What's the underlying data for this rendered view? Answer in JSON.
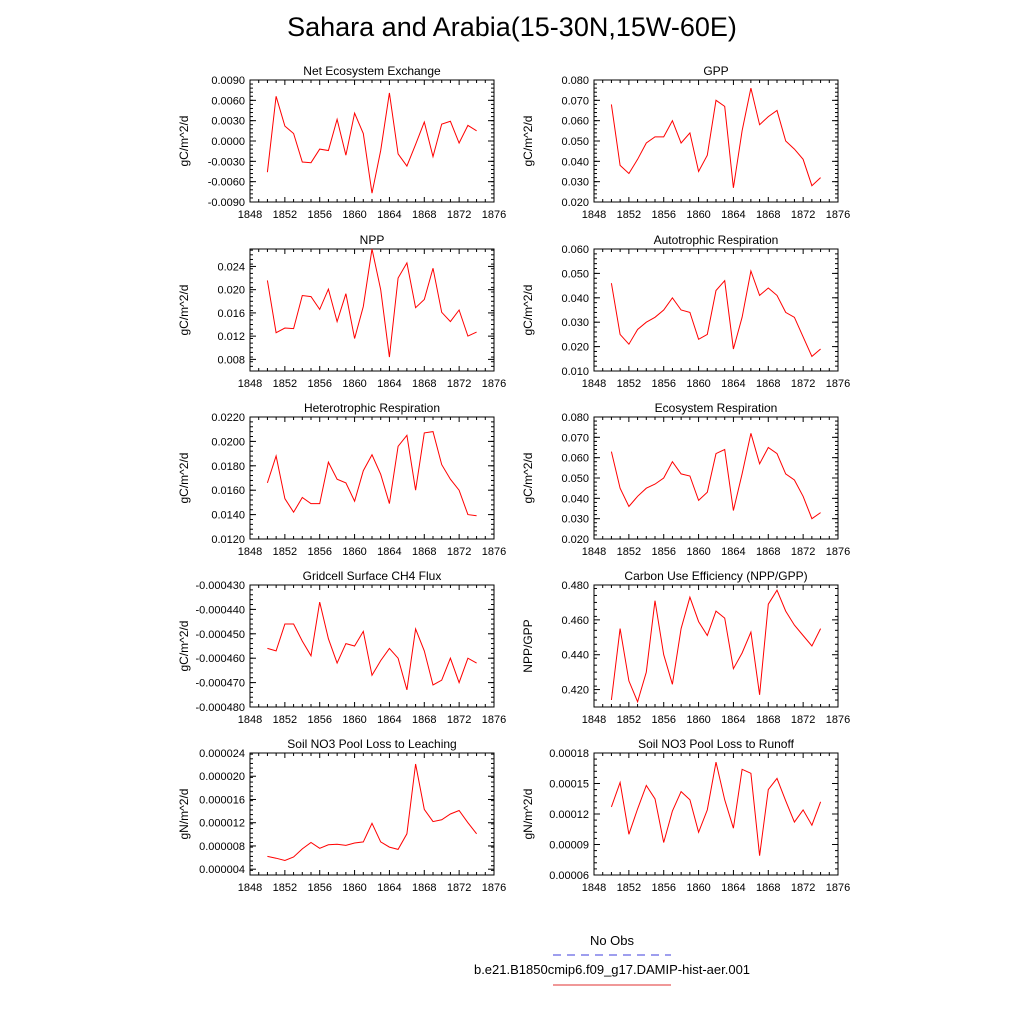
{
  "page": {
    "title": "Sahara and Arabia(15-30N,15W-60E)"
  },
  "legend": {
    "entries": [
      {
        "label": "No Obs",
        "color": "#3c3cdc",
        "dash": true
      },
      {
        "label": "b.e21.B1850cmip6.f09_g17.DAMIP-hist-aer.001",
        "color": "#e03030",
        "dash": false
      }
    ]
  },
  "chart_data": [
    {
      "type": "line",
      "title": "Net Ecosystem Exchange",
      "xlabel": "",
      "ylabel": "gC/m^2/d",
      "xlim": [
        1848,
        1876
      ],
      "ylim": [
        -0.009,
        0.009
      ],
      "xticks": [
        "1848",
        "1852",
        "1856",
        "1860",
        "1864",
        "1868",
        "1872",
        "1876"
      ],
      "yticks": [
        "-0.0090",
        "-0.0060",
        "-0.0030",
        "0.0000",
        "0.0030",
        "0.0060",
        "0.0090"
      ],
      "x": [
        1850,
        1851,
        1852,
        1853,
        1854,
        1855,
        1856,
        1857,
        1858,
        1859,
        1860,
        1861,
        1862,
        1863,
        1864,
        1865,
        1866,
        1867,
        1868,
        1869,
        1870,
        1871,
        1872,
        1873,
        1874
      ],
      "series": [
        {
          "values": [
            -0.0046,
            0.0066,
            0.0022,
            0.0011,
            -0.0031,
            -0.0032,
            -0.0012,
            -0.0014,
            0.0032,
            -0.0021,
            0.0041,
            0.0011,
            -0.0077,
            -0.0014,
            0.0071,
            -0.0019,
            -0.0037,
            -0.0005,
            0.0028,
            -0.0023,
            0.0025,
            0.0029,
            -0.0003,
            0.0023,
            0.0015
          ],
          "color": "#ff0000"
        }
      ]
    },
    {
      "type": "line",
      "title": "GPP",
      "xlabel": "",
      "ylabel": "gC/m^2/d",
      "xlim": [
        1848,
        1876
      ],
      "ylim": [
        0.02,
        0.08
      ],
      "xticks": [
        "1848",
        "1852",
        "1856",
        "1860",
        "1864",
        "1868",
        "1872",
        "1876"
      ],
      "yticks": [
        "0.020",
        "0.030",
        "0.040",
        "0.050",
        "0.060",
        "0.070",
        "0.080"
      ],
      "x": [
        1850,
        1851,
        1852,
        1853,
        1854,
        1855,
        1856,
        1857,
        1858,
        1859,
        1860,
        1861,
        1862,
        1863,
        1864,
        1865,
        1866,
        1867,
        1868,
        1869,
        1870,
        1871,
        1872,
        1873,
        1874
      ],
      "series": [
        {
          "values": [
            0.068,
            0.038,
            0.034,
            0.041,
            0.049,
            0.052,
            0.052,
            0.06,
            0.049,
            0.054,
            0.035,
            0.043,
            0.07,
            0.067,
            0.027,
            0.055,
            0.076,
            0.058,
            0.062,
            0.065,
            0.05,
            0.046,
            0.041,
            0.028,
            0.032
          ],
          "color": "#ff0000"
        }
      ]
    },
    {
      "type": "line",
      "title": "NPP",
      "xlabel": "",
      "ylabel": "gC/m^2/d",
      "xlim": [
        1848,
        1876
      ],
      "ylim": [
        0.006,
        0.027
      ],
      "xticks": [
        "1848",
        "1852",
        "1856",
        "1860",
        "1864",
        "1868",
        "1872",
        "1876"
      ],
      "yticks": [
        "0.008",
        "0.012",
        "0.016",
        "0.020",
        "0.024"
      ],
      "x": [
        1850,
        1851,
        1852,
        1853,
        1854,
        1855,
        1856,
        1857,
        1858,
        1859,
        1860,
        1861,
        1862,
        1863,
        1864,
        1865,
        1866,
        1867,
        1868,
        1869,
        1870,
        1871,
        1872,
        1873,
        1874
      ],
      "series": [
        {
          "values": [
            0.0216,
            0.0126,
            0.0134,
            0.0133,
            0.019,
            0.0188,
            0.0166,
            0.0201,
            0.0145,
            0.0193,
            0.0116,
            0.0171,
            0.027,
            0.02,
            0.0084,
            0.022,
            0.0246,
            0.0169,
            0.0183,
            0.0237,
            0.0161,
            0.0145,
            0.0165,
            0.012,
            0.0127
          ],
          "color": "#ff0000"
        }
      ]
    },
    {
      "type": "line",
      "title": "Autotrophic Respiration",
      "xlabel": "",
      "ylabel": "gC/m^2/d",
      "xlim": [
        1848,
        1876
      ],
      "ylim": [
        0.01,
        0.06
      ],
      "xticks": [
        "1848",
        "1852",
        "1856",
        "1860",
        "1864",
        "1868",
        "1872",
        "1876"
      ],
      "yticks": [
        "0.010",
        "0.020",
        "0.030",
        "0.040",
        "0.050",
        "0.060"
      ],
      "x": [
        1850,
        1851,
        1852,
        1853,
        1854,
        1855,
        1856,
        1857,
        1858,
        1859,
        1860,
        1861,
        1862,
        1863,
        1864,
        1865,
        1866,
        1867,
        1868,
        1869,
        1870,
        1871,
        1872,
        1873,
        1874
      ],
      "series": [
        {
          "values": [
            0.046,
            0.025,
            0.021,
            0.027,
            0.03,
            0.032,
            0.035,
            0.04,
            0.035,
            0.034,
            0.023,
            0.025,
            0.043,
            0.047,
            0.019,
            0.032,
            0.051,
            0.041,
            0.044,
            0.041,
            0.034,
            0.032,
            0.024,
            0.016,
            0.019
          ],
          "color": "#ff0000"
        }
      ]
    },
    {
      "type": "line",
      "title": "Heterotrophic Respiration",
      "xlabel": "",
      "ylabel": "gC/m^2/d",
      "xlim": [
        1848,
        1876
      ],
      "ylim": [
        0.012,
        0.022
      ],
      "xticks": [
        "1848",
        "1852",
        "1856",
        "1860",
        "1864",
        "1868",
        "1872",
        "1876"
      ],
      "yticks": [
        "0.0120",
        "0.0140",
        "0.0160",
        "0.0180",
        "0.0200",
        "0.0220"
      ],
      "x": [
        1850,
        1851,
        1852,
        1853,
        1854,
        1855,
        1856,
        1857,
        1858,
        1859,
        1860,
        1861,
        1862,
        1863,
        1864,
        1865,
        1866,
        1867,
        1868,
        1869,
        1870,
        1871,
        1872,
        1873,
        1874
      ],
      "series": [
        {
          "values": [
            0.0166,
            0.0188,
            0.0153,
            0.0142,
            0.0154,
            0.0149,
            0.0149,
            0.0183,
            0.0169,
            0.0166,
            0.0151,
            0.0176,
            0.0189,
            0.0173,
            0.0149,
            0.0196,
            0.0205,
            0.016,
            0.0207,
            0.0208,
            0.0181,
            0.0169,
            0.016,
            0.014,
            0.0139
          ],
          "color": "#ff0000"
        }
      ]
    },
    {
      "type": "line",
      "title": "Ecosystem Respiration",
      "xlabel": "",
      "ylabel": "gC/m^2/d",
      "xlim": [
        1848,
        1876
      ],
      "ylim": [
        0.02,
        0.08
      ],
      "xticks": [
        "1848",
        "1852",
        "1856",
        "1860",
        "1864",
        "1868",
        "1872",
        "1876"
      ],
      "yticks": [
        "0.020",
        "0.030",
        "0.040",
        "0.050",
        "0.060",
        "0.070",
        "0.080"
      ],
      "x": [
        1850,
        1851,
        1852,
        1853,
        1854,
        1855,
        1856,
        1857,
        1858,
        1859,
        1860,
        1861,
        1862,
        1863,
        1864,
        1865,
        1866,
        1867,
        1868,
        1869,
        1870,
        1871,
        1872,
        1873,
        1874
      ],
      "series": [
        {
          "values": [
            0.063,
            0.045,
            0.036,
            0.041,
            0.045,
            0.047,
            0.05,
            0.058,
            0.052,
            0.051,
            0.039,
            0.043,
            0.062,
            0.064,
            0.034,
            0.052,
            0.072,
            0.057,
            0.065,
            0.062,
            0.052,
            0.049,
            0.041,
            0.03,
            0.033
          ],
          "color": "#ff0000"
        }
      ]
    },
    {
      "type": "line",
      "title": "Gridcell Surface CH4 Flux",
      "xlabel": "",
      "ylabel": "gC/m^2/d",
      "xlim": [
        1848,
        1876
      ],
      "ylim": [
        -0.00048,
        -0.00043
      ],
      "xticks": [
        "1848",
        "1852",
        "1856",
        "1860",
        "1864",
        "1868",
        "1872",
        "1876"
      ],
      "yticks": [
        "-0.000480",
        "-0.000470",
        "-0.000460",
        "-0.000450",
        "-0.000440",
        "-0.000430"
      ],
      "x": [
        1850,
        1851,
        1852,
        1853,
        1854,
        1855,
        1856,
        1857,
        1858,
        1859,
        1860,
        1861,
        1862,
        1863,
        1864,
        1865,
        1866,
        1867,
        1868,
        1869,
        1870,
        1871,
        1872,
        1873,
        1874
      ],
      "series": [
        {
          "values": [
            -0.000456,
            -0.000457,
            -0.000446,
            -0.000446,
            -0.000453,
            -0.000459,
            -0.000437,
            -0.000452,
            -0.000462,
            -0.000454,
            -0.000455,
            -0.000449,
            -0.000467,
            -0.000461,
            -0.000456,
            -0.00046,
            -0.000473,
            -0.000448,
            -0.000457,
            -0.000471,
            -0.000469,
            -0.00046,
            -0.00047,
            -0.00046,
            -0.000462
          ],
          "color": "#ff0000"
        }
      ]
    },
    {
      "type": "line",
      "title": "Carbon Use Efficiency (NPP/GPP)",
      "xlabel": "",
      "ylabel": "NPP/GPP",
      "xlim": [
        1848,
        1876
      ],
      "ylim": [
        0.41,
        0.48
      ],
      "xticks": [
        "1848",
        "1852",
        "1856",
        "1860",
        "1864",
        "1868",
        "1872",
        "1876"
      ],
      "yticks": [
        "0.420",
        "0.440",
        "0.460",
        "0.480"
      ],
      "x": [
        1850,
        1851,
        1852,
        1853,
        1854,
        1855,
        1856,
        1857,
        1858,
        1859,
        1860,
        1861,
        1862,
        1863,
        1864,
        1865,
        1866,
        1867,
        1868,
        1869,
        1870,
        1871,
        1872,
        1873,
        1874
      ],
      "series": [
        {
          "values": [
            0.414,
            0.455,
            0.425,
            0.413,
            0.43,
            0.471,
            0.44,
            0.423,
            0.455,
            0.473,
            0.459,
            0.451,
            0.465,
            0.461,
            0.432,
            0.441,
            0.453,
            0.417,
            0.469,
            0.477,
            0.465,
            0.457,
            0.451,
            0.445,
            0.455
          ],
          "color": "#ff0000"
        }
      ]
    },
    {
      "type": "line",
      "title": "Soil NO3 Pool Loss to Leaching",
      "xlabel": "",
      "ylabel": "gN/m^2/d",
      "xlim": [
        1848,
        1876
      ],
      "ylim": [
        3e-06,
        2.4e-05
      ],
      "xticks": [
        "1848",
        "1852",
        "1856",
        "1860",
        "1864",
        "1868",
        "1872",
        "1876"
      ],
      "yticks": [
        "0.000004",
        "0.000008",
        "0.000012",
        "0.000016",
        "0.000020",
        "0.000024"
      ],
      "x": [
        1850,
        1851,
        1852,
        1853,
        1854,
        1855,
        1856,
        1857,
        1858,
        1859,
        1860,
        1861,
        1862,
        1863,
        1864,
        1865,
        1866,
        1867,
        1868,
        1869,
        1870,
        1871,
        1872,
        1873,
        1874
      ],
      "series": [
        {
          "values": [
            6.2e-06,
            5.9e-06,
            5.5e-06,
            6.1e-06,
            7.5e-06,
            8.6e-06,
            7.6e-06,
            8.2e-06,
            8.3e-06,
            8.1e-06,
            8.5e-06,
            8.7e-06,
            1.19e-05,
            8.7e-06,
            7.8e-06,
            7.4e-06,
            1.01e-05,
            2.21e-05,
            1.43e-05,
            1.22e-05,
            1.25e-05,
            1.35e-05,
            1.41e-05,
            1.2e-05,
            1.01e-05
          ],
          "color": "#ff0000"
        }
      ]
    },
    {
      "type": "line",
      "title": "Soil NO3 Pool Loss to Runoff",
      "xlabel": "",
      "ylabel": "gN/m^2/d",
      "xlim": [
        1848,
        1876
      ],
      "ylim": [
        6e-05,
        0.00018
      ],
      "xticks": [
        "1848",
        "1852",
        "1856",
        "1860",
        "1864",
        "1868",
        "1872",
        "1876"
      ],
      "yticks": [
        "0.00006",
        "0.00009",
        "0.00012",
        "0.00015",
        "0.00018"
      ],
      "x": [
        1850,
        1851,
        1852,
        1853,
        1854,
        1855,
        1856,
        1857,
        1858,
        1859,
        1860,
        1861,
        1862,
        1863,
        1864,
        1865,
        1866,
        1867,
        1868,
        1869,
        1870,
        1871,
        1872,
        1873,
        1874
      ],
      "series": [
        {
          "values": [
            0.000127,
            0.000151,
            0.0001,
            0.000125,
            0.000148,
            0.000135,
            9.2e-05,
            0.000123,
            0.000142,
            0.000134,
            0.000102,
            0.000124,
            0.000171,
            0.000134,
            0.000106,
            0.000164,
            0.00016,
            7.9e-05,
            0.000144,
            0.000155,
            0.000133,
            0.000112,
            0.000124,
            0.000109,
            0.000132
          ],
          "color": "#ff0000"
        }
      ]
    }
  ]
}
